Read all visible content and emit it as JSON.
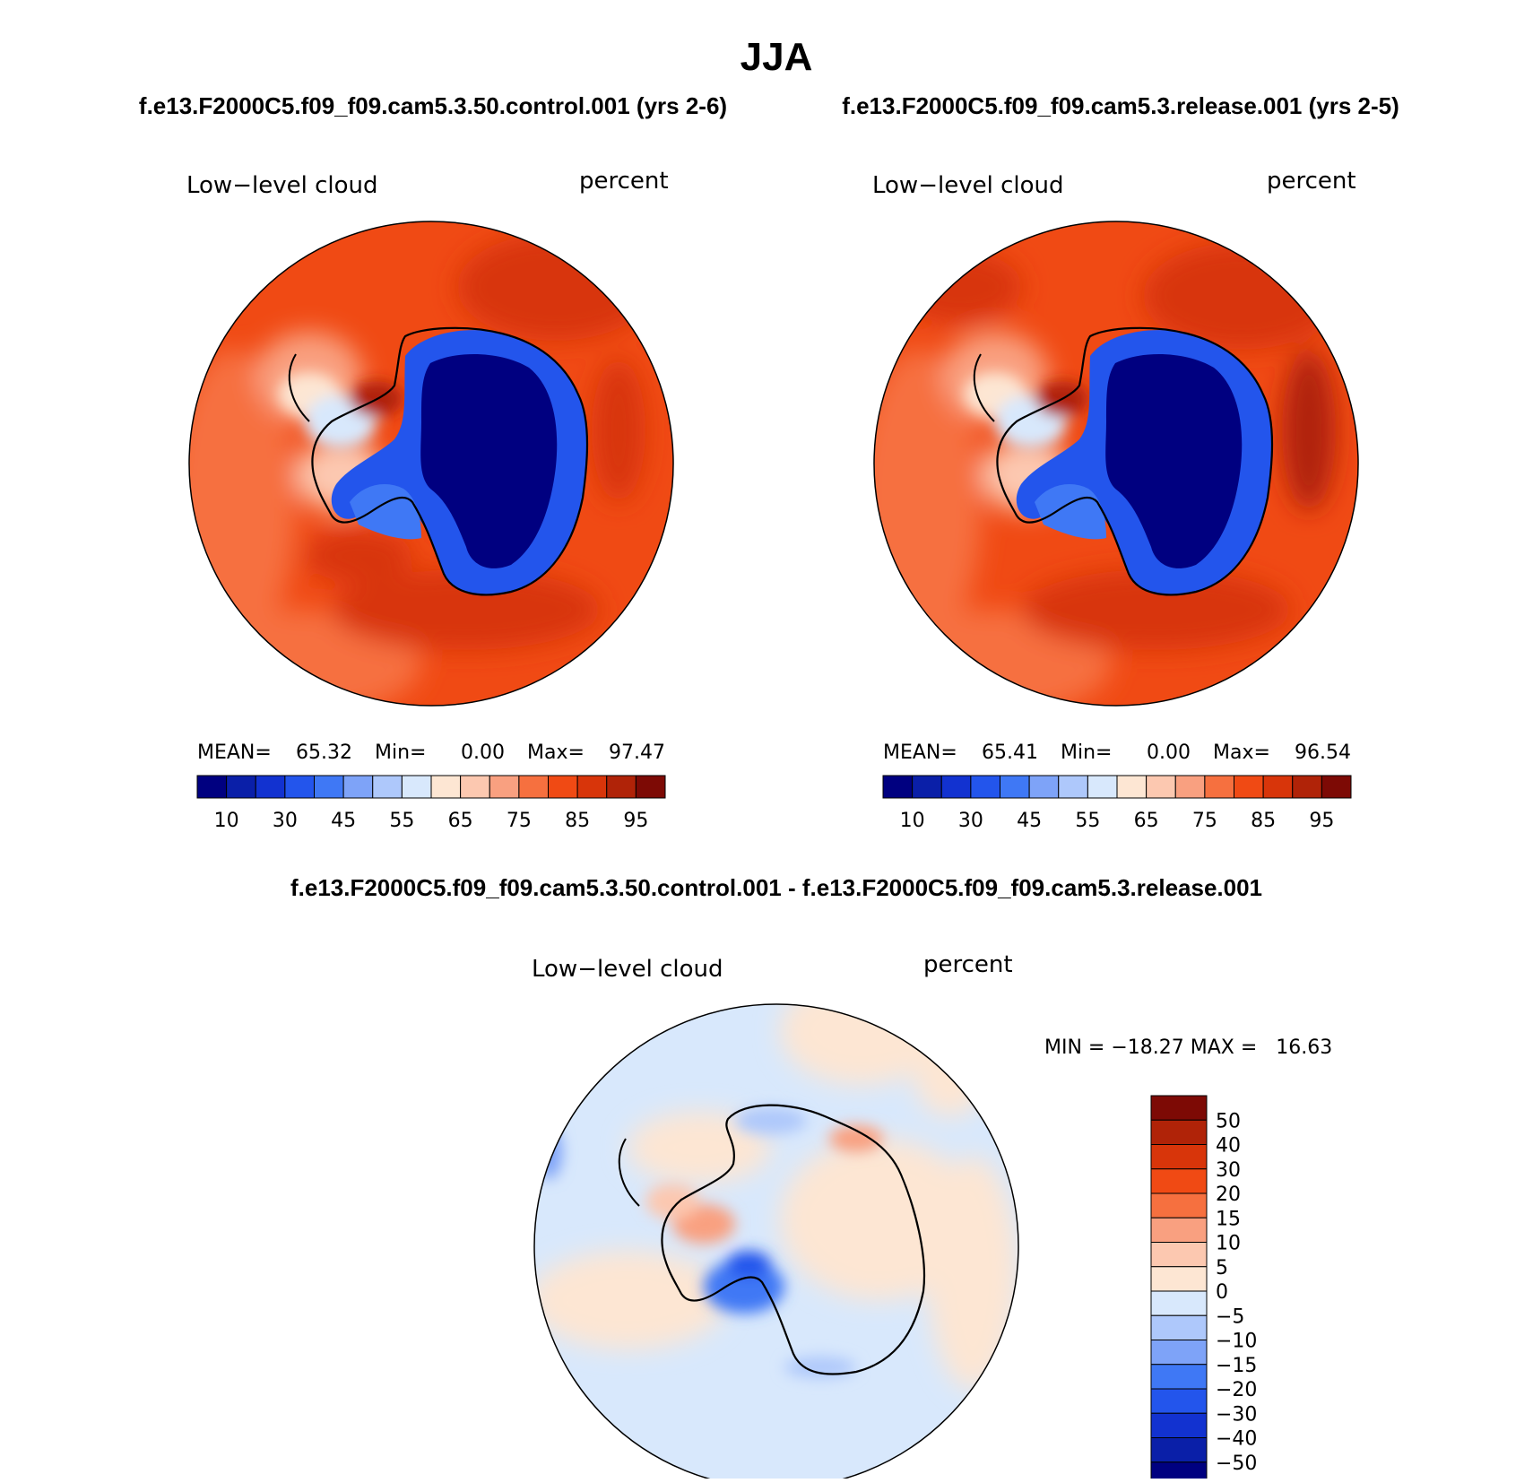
{
  "title": "JJA",
  "panel1": {
    "heading": "f.e13.F2000C5.f09_f09.cam5.3.50.control.001 (yrs 2-6)",
    "variable": "Low−level cloud",
    "units": "percent",
    "mean_label": "MEAN=",
    "mean_value": "65.32",
    "min_label": "Min=",
    "min_value": "0.00",
    "max_label": "Max=",
    "max_value": "97.47"
  },
  "panel2": {
    "heading": "f.e13.F2000C5.f09_f09.cam5.3.release.001 (yrs 2-5)",
    "variable": "Low−level cloud",
    "units": "percent",
    "mean_label": "MEAN=",
    "mean_value": "65.41",
    "min_label": "Min=",
    "min_value": "0.00",
    "max_label": "Max=",
    "max_value": "96.54"
  },
  "panel3": {
    "heading": "f.e13.F2000C5.f09_f09.cam5.3.50.control.001 - f.e13.F2000C5.f09_f09.cam5.3.release.001",
    "variable": "Low−level cloud",
    "units": "percent",
    "minmax": "MIN = −18.27 MAX =   16.63"
  },
  "colorbar_abs": {
    "colors": [
      "#000080",
      "#0a1fa8",
      "#1232d0",
      "#2355ec",
      "#3f78f5",
      "#7ea3f8",
      "#aec8fb",
      "#d8e8fc",
      "#fde6d3",
      "#fcc8b0",
      "#f9a080",
      "#f6703f",
      "#f04a14",
      "#d8350a",
      "#b02308",
      "#7d0a05"
    ],
    "labels": [
      "10",
      "30",
      "45",
      "55",
      "65",
      "75",
      "85",
      "95"
    ]
  },
  "colorbar_diff": {
    "colors": [
      "#7d0a05",
      "#b02308",
      "#d8350a",
      "#f04a14",
      "#f6703f",
      "#f9a080",
      "#fcc8b0",
      "#fde6d3",
      "#d8e8fc",
      "#aec8fb",
      "#7ea3f8",
      "#3f78f5",
      "#2355ec",
      "#1232d0",
      "#0a1fa8",
      "#000080"
    ],
    "labels": [
      "50",
      "40",
      "30",
      "20",
      "15",
      "10",
      "5",
      "0",
      "−5",
      "−10",
      "−15",
      "−20",
      "−30",
      "−40",
      "−50"
    ]
  }
}
